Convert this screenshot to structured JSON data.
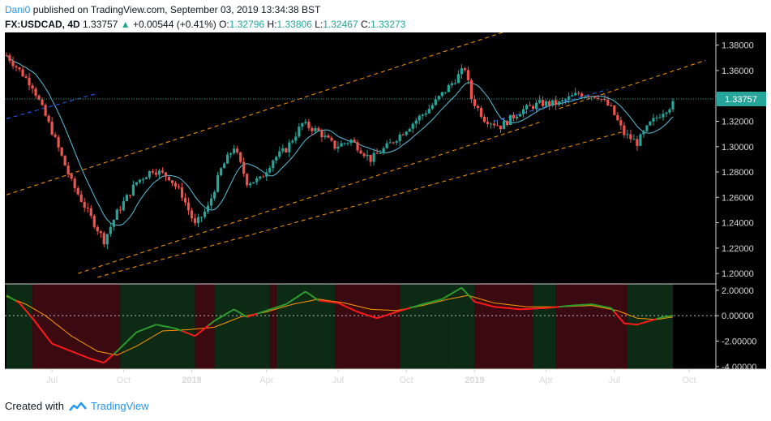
{
  "header": {
    "author": "Dani0",
    "published": "published on TradingView.com, September 03, 2019 13:34:38 BST"
  },
  "symbol_line": {
    "symbol": "FX:USDCAD, 4D",
    "last": "1.33757",
    "change": "+0.00544 (+0.41%)",
    "open_label": "O:",
    "open": "1.32796",
    "high_label": "H:",
    "high": "1.33806",
    "low_label": "L:",
    "low": "1.32467",
    "close_label": "C:",
    "close": "1.33273"
  },
  "footer": {
    "created_with": "Created with",
    "brand": "TradingView"
  },
  "colors": {
    "bull": "#26a69a",
    "bear": "#ef5350",
    "background": "#000000",
    "channel": "#ff9800",
    "blue_dash": "#2962ff",
    "ma": "#5bc0de",
    "price_line": "#26a69a",
    "osc_green": "#2e9d2e",
    "osc_red": "#ff1a1a",
    "osc_orange": "#ff9800"
  },
  "chart_data": {
    "type": "candlestick",
    "symbol": "FX:USDCAD",
    "timeframe": "4D",
    "last_price_label": "1.33757",
    "price_axis": {
      "ylim": [
        1.195,
        1.39
      ],
      "ticks": [
        "1.38000",
        "1.36000",
        "1.34000",
        "1.32000",
        "1.30000",
        "1.28000",
        "1.26000",
        "1.24000",
        "1.22000",
        "1.20000"
      ]
    },
    "oscillator_axis": {
      "ylim": [
        -4.2,
        2.5
      ],
      "ticks": [
        "2.00000",
        "0.00000",
        "-2.00000",
        "-4.00000"
      ]
    },
    "time_axis": {
      "labels": [
        "Jul",
        "Oct",
        "2018",
        "Apr",
        "Jul",
        "Oct",
        "2019",
        "Apr",
        "Jul",
        "Oct"
      ],
      "bold": [
        "2018",
        "2019"
      ]
    },
    "price_path": [
      {
        "t": 0,
        "p": 1.372
      },
      {
        "t": 8,
        "p": 1.348
      },
      {
        "t": 14,
        "p": 1.312
      },
      {
        "t": 20,
        "p": 1.272
      },
      {
        "t": 26,
        "p": 1.244
      },
      {
        "t": 30,
        "p": 1.226
      },
      {
        "t": 34,
        "p": 1.248
      },
      {
        "t": 40,
        "p": 1.272
      },
      {
        "t": 45,
        "p": 1.282
      },
      {
        "t": 50,
        "p": 1.276
      },
      {
        "t": 54,
        "p": 1.262
      },
      {
        "t": 58,
        "p": 1.238
      },
      {
        "t": 62,
        "p": 1.252
      },
      {
        "t": 66,
        "p": 1.282
      },
      {
        "t": 70,
        "p": 1.3
      },
      {
        "t": 74,
        "p": 1.272
      },
      {
        "t": 78,
        "p": 1.274
      },
      {
        "t": 82,
        "p": 1.29
      },
      {
        "t": 86,
        "p": 1.298
      },
      {
        "t": 91,
        "p": 1.318
      },
      {
        "t": 96,
        "p": 1.312
      },
      {
        "t": 101,
        "p": 1.3
      },
      {
        "t": 106,
        "p": 1.305
      },
      {
        "t": 112,
        "p": 1.29
      },
      {
        "t": 117,
        "p": 1.3
      },
      {
        "t": 123,
        "p": 1.314
      },
      {
        "t": 130,
        "p": 1.33
      },
      {
        "t": 137,
        "p": 1.35
      },
      {
        "t": 141,
        "p": 1.362
      },
      {
        "t": 143,
        "p": 1.338
      },
      {
        "t": 147,
        "p": 1.322
      },
      {
        "t": 152,
        "p": 1.316
      },
      {
        "t": 158,
        "p": 1.328
      },
      {
        "t": 164,
        "p": 1.334
      },
      {
        "t": 170,
        "p": 1.334
      },
      {
        "t": 176,
        "p": 1.342
      },
      {
        "t": 182,
        "p": 1.34
      },
      {
        "t": 186,
        "p": 1.33
      },
      {
        "t": 190,
        "p": 1.31
      },
      {
        "t": 194,
        "p": 1.303
      },
      {
        "t": 198,
        "p": 1.318
      },
      {
        "t": 202,
        "p": 1.328
      },
      {
        "t": 205,
        "p": 1.3335
      }
    ],
    "channels": {
      "upper": [
        {
          "t": 0,
          "p": 1.262
        },
        {
          "t": 155,
          "p": 1.392
        }
      ],
      "lower": [
        {
          "t": 22,
          "p": 1.2
        },
        {
          "t": 165,
          "p": 1.32
        }
      ],
      "lower2": [
        {
          "t": 28,
          "p": 1.197
        },
        {
          "t": 190,
          "p": 1.312
        }
      ],
      "upper2": [
        {
          "t": 170,
          "p": 1.33
        },
        {
          "t": 215,
          "p": 1.368
        }
      ],
      "blue_dash_1": [
        {
          "t": 0,
          "p": 1.322
        },
        {
          "t": 28,
          "p": 1.342
        }
      ],
      "blue_dash_2": [
        {
          "t": 150,
          "p": 1.32
        },
        {
          "t": 185,
          "p": 1.345
        }
      ]
    },
    "oscillator": {
      "zero_line": 0.0,
      "fast": [
        {
          "t": 0,
          "v": 1.6
        },
        {
          "t": 4,
          "v": 1.0
        },
        {
          "t": 8,
          "v": -0.2
        },
        {
          "t": 14,
          "v": -2.2
        },
        {
          "t": 20,
          "v": -2.8
        },
        {
          "t": 26,
          "v": -3.4
        },
        {
          "t": 30,
          "v": -3.7
        },
        {
          "t": 34,
          "v": -2.8
        },
        {
          "t": 40,
          "v": -1.3
        },
        {
          "t": 46,
          "v": -0.7
        },
        {
          "t": 52,
          "v": -1.0
        },
        {
          "t": 58,
          "v": -1.6
        },
        {
          "t": 64,
          "v": -0.4
        },
        {
          "t": 70,
          "v": 0.5
        },
        {
          "t": 74,
          "v": -0.1
        },
        {
          "t": 80,
          "v": 0.4
        },
        {
          "t": 86,
          "v": 0.9
        },
        {
          "t": 92,
          "v": 1.9
        },
        {
          "t": 96,
          "v": 1.2
        },
        {
          "t": 102,
          "v": 1.0
        },
        {
          "t": 108,
          "v": 0.3
        },
        {
          "t": 114,
          "v": -0.2
        },
        {
          "t": 120,
          "v": 0.3
        },
        {
          "t": 128,
          "v": 0.9
        },
        {
          "t": 134,
          "v": 1.3
        },
        {
          "t": 140,
          "v": 2.2
        },
        {
          "t": 144,
          "v": 1.1
        },
        {
          "t": 150,
          "v": 0.7
        },
        {
          "t": 158,
          "v": 0.5
        },
        {
          "t": 166,
          "v": 0.6
        },
        {
          "t": 174,
          "v": 0.8
        },
        {
          "t": 180,
          "v": 0.9
        },
        {
          "t": 186,
          "v": 0.6
        },
        {
          "t": 190,
          "v": -0.6
        },
        {
          "t": 194,
          "v": -0.7
        },
        {
          "t": 198,
          "v": -0.4
        },
        {
          "t": 202,
          "v": -0.1
        },
        {
          "t": 205,
          "v": 0.0
        }
      ],
      "slow": [
        {
          "t": 0,
          "v": 1.5
        },
        {
          "t": 6,
          "v": 0.9
        },
        {
          "t": 12,
          "v": 0.0
        },
        {
          "t": 20,
          "v": -1.6
        },
        {
          "t": 28,
          "v": -2.8
        },
        {
          "t": 34,
          "v": -3.1
        },
        {
          "t": 40,
          "v": -2.4
        },
        {
          "t": 48,
          "v": -1.2
        },
        {
          "t": 56,
          "v": -1.1
        },
        {
          "t": 64,
          "v": -0.9
        },
        {
          "t": 72,
          "v": -0.1
        },
        {
          "t": 80,
          "v": 0.3
        },
        {
          "t": 88,
          "v": 0.9
        },
        {
          "t": 96,
          "v": 1.3
        },
        {
          "t": 104,
          "v": 1.0
        },
        {
          "t": 112,
          "v": 0.5
        },
        {
          "t": 120,
          "v": 0.4
        },
        {
          "t": 128,
          "v": 0.8
        },
        {
          "t": 136,
          "v": 1.3
        },
        {
          "t": 142,
          "v": 1.6
        },
        {
          "t": 150,
          "v": 1.0
        },
        {
          "t": 160,
          "v": 0.7
        },
        {
          "t": 170,
          "v": 0.7
        },
        {
          "t": 180,
          "v": 0.8
        },
        {
          "t": 188,
          "v": 0.4
        },
        {
          "t": 194,
          "v": -0.2
        },
        {
          "t": 200,
          "v": -0.3
        },
        {
          "t": 205,
          "v": -0.1
        }
      ],
      "background_bands": [
        {
          "from": 0,
          "to": 8,
          "state": "bull"
        },
        {
          "from": 8,
          "to": 35,
          "state": "bear"
        },
        {
          "from": 35,
          "to": 58,
          "state": "bull"
        },
        {
          "from": 58,
          "to": 64,
          "state": "bear"
        },
        {
          "from": 64,
          "to": 81,
          "state": "bull"
        },
        {
          "from": 81,
          "to": 83,
          "state": "bear"
        },
        {
          "from": 83,
          "to": 101,
          "state": "bull"
        },
        {
          "from": 101,
          "to": 121,
          "state": "bear"
        },
        {
          "from": 121,
          "to": 136,
          "state": "bull"
        },
        {
          "from": 136,
          "to": 144,
          "state": "bull"
        },
        {
          "from": 144,
          "to": 162,
          "state": "bear"
        },
        {
          "from": 162,
          "to": 169,
          "state": "bull"
        },
        {
          "from": 169,
          "to": 191,
          "state": "bear"
        },
        {
          "from": 191,
          "to": 205,
          "state": "bull"
        }
      ]
    }
  }
}
